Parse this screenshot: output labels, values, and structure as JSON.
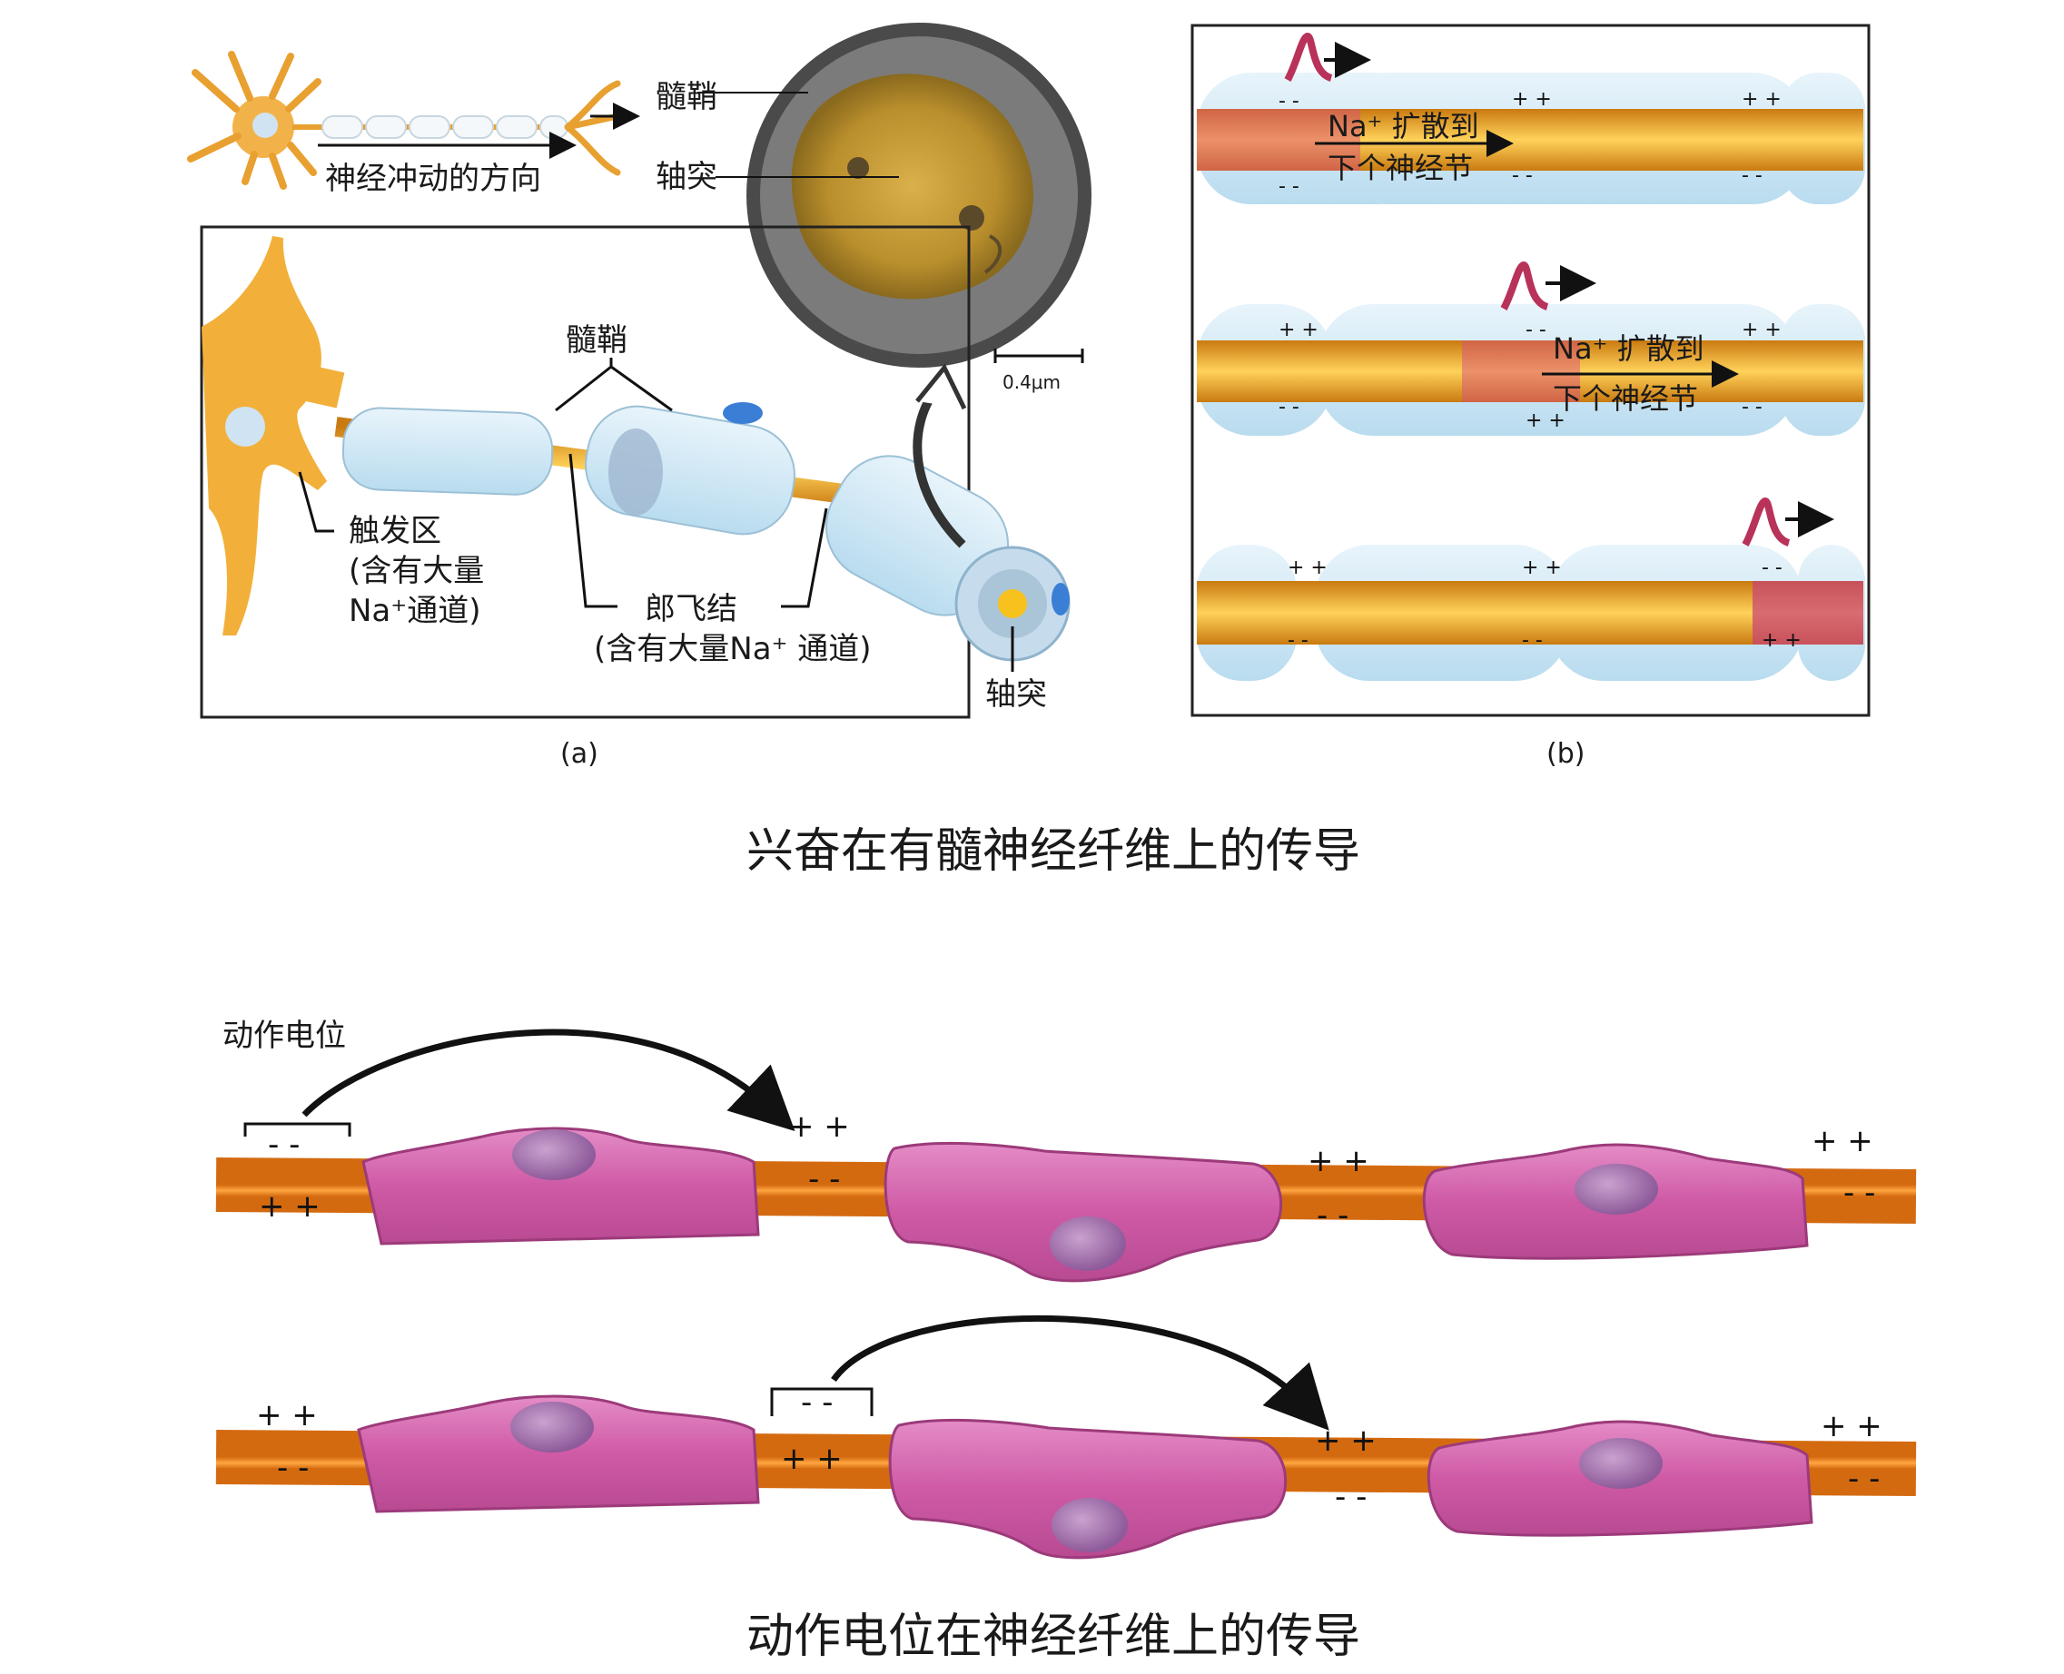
{
  "panel_a": {
    "label_myelin_top": "髓鞘",
    "label_axon_top": "轴突",
    "label_direction": "神经冲动的方向",
    "label_scale": "0.4μm",
    "label_myelin": "髓鞘",
    "label_trigger_zone": "触发区",
    "label_trigger_note1": "(含有大量",
    "label_trigger_note2": "Na⁺通道)",
    "label_node": "郎飞结",
    "label_node_note": "(含有大量Na⁺ 通道)",
    "label_axon_bottom": "轴突",
    "caption": "(a)"
  },
  "panel_b": {
    "row1_text1": "Na⁺ 扩散到",
    "row1_text2": "下个神经节",
    "row2_text1": "Na⁺ 扩散到",
    "row2_text2": "下个神经节",
    "caption": "(b)"
  },
  "title_top": "兴奋在有髓神经纤维上的传导",
  "bottom": {
    "label_action_potential": "动作电位",
    "title": "动作电位在神经纤维上的传导"
  },
  "colors": {
    "axon": "#e8a020",
    "myelin_blue": "#cfe6f4",
    "myelin_pink": "#d86ab0",
    "bottom_axon": "#f28a1e"
  }
}
